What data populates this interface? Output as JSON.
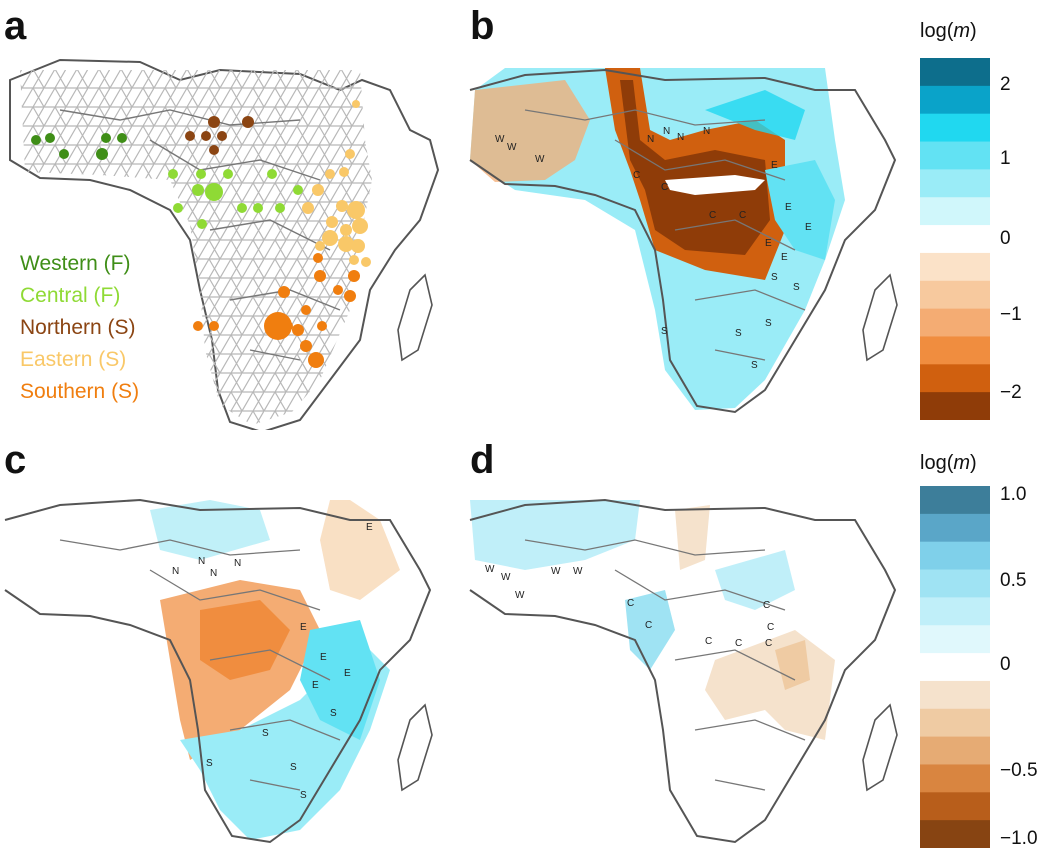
{
  "panels": {
    "a": {
      "letter": "a"
    },
    "b": {
      "letter": "b"
    },
    "c": {
      "letter": "c"
    },
    "d": {
      "letter": "d"
    }
  },
  "legend_a": [
    {
      "label": "Western (F)",
      "color": "#3f8e17"
    },
    {
      "label": "Central (F)",
      "color": "#8fda35"
    },
    {
      "label": "Northern (S)",
      "color": "#8b4513"
    },
    {
      "label": "Eastern (S)",
      "color": "#f9c868"
    },
    {
      "label": "Southern (S)",
      "color": "#f07e0f"
    }
  ],
  "colorbar_top": {
    "title_prefix": "log(",
    "title_var": "m",
    "title_suffix": ")",
    "ticks": [
      "2",
      "1",
      "0",
      "−1",
      "−2"
    ],
    "colors": [
      "#0d6e8c",
      "#0aa3c9",
      "#20d8f0",
      "#62e2f3",
      "#9aecf7",
      "#d0f7fb",
      "#ffffff",
      "#fbe2c8",
      "#f7c99e",
      "#f4ac73",
      "#f08d3f",
      "#d0600f",
      "#8f3c08"
    ]
  },
  "colorbar_bottom": {
    "title_prefix": "log(",
    "title_var": "m",
    "title_suffix": ")",
    "ticks": [
      "1.0",
      "0.5",
      "0",
      "−0.5",
      "−1.0"
    ],
    "colors": [
      "#3d7e9a",
      "#5aa6c8",
      "#7fd0ea",
      "#9fe3f3",
      "#c0eff9",
      "#e0f8fc",
      "#ffffff",
      "#f5e2cc",
      "#efcba3",
      "#e6ab74",
      "#d98540",
      "#b85e1b",
      "#874412"
    ]
  },
  "map_labels": {
    "W": "W",
    "N": "N",
    "C": "C",
    "E": "E",
    "S": "S"
  }
}
